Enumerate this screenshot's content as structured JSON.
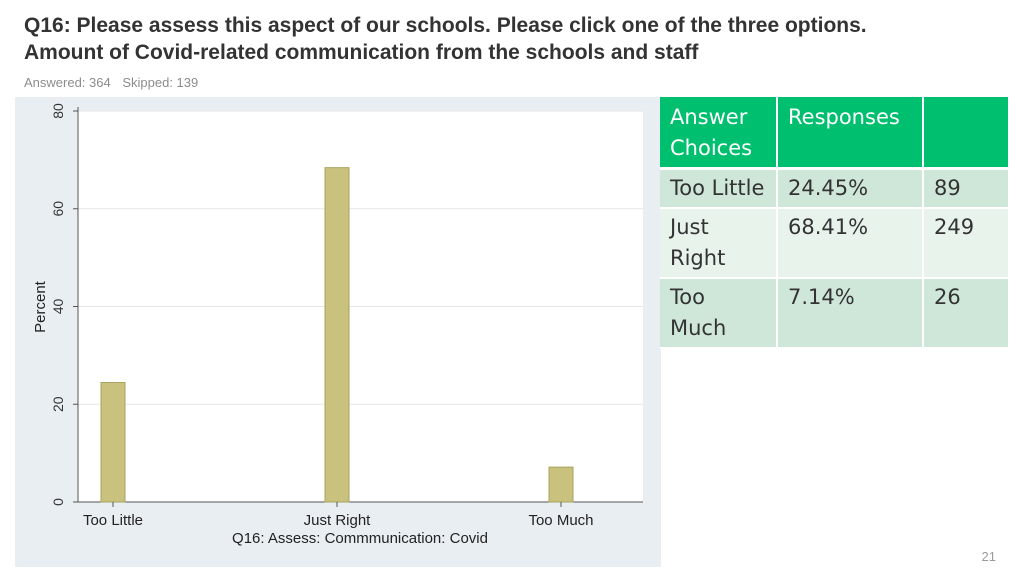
{
  "header": {
    "title_line1": "Q16: Please assess this aspect of our schools. Please click one of the three options.",
    "title_line2": "Amount of Covid-related communication from the schools and staff",
    "answered": "Answered: 364",
    "skipped": "Skipped: 139"
  },
  "chart_data": {
    "type": "bar",
    "categories": [
      "Too Little",
      "Just Right",
      "Too Much"
    ],
    "values": [
      24.45,
      68.41,
      7.14
    ],
    "xlabel": "Q16: Assess: Commmunication: Covid",
    "ylabel": "Percent",
    "ylim": [
      0,
      80
    ],
    "yticks": [
      0,
      20,
      40,
      60,
      80
    ],
    "grid": true,
    "bar_color": "#c9c27e",
    "bar_edge_color": "#a9a35f",
    "background_color": "#e9eef3",
    "plot_color": "#ffffff"
  },
  "table": {
    "headers": [
      "Answer Choices",
      "Responses",
      ""
    ],
    "rows": [
      {
        "choice": "Too Little",
        "percent": "24.45%",
        "count": "89"
      },
      {
        "choice": "Just Right",
        "percent": "68.41%",
        "count": "249"
      },
      {
        "choice": "Too Much",
        "percent": "7.14%",
        "count": "26"
      }
    ],
    "header_color": "#00bf6f"
  },
  "footer": {
    "page_number": "21"
  }
}
